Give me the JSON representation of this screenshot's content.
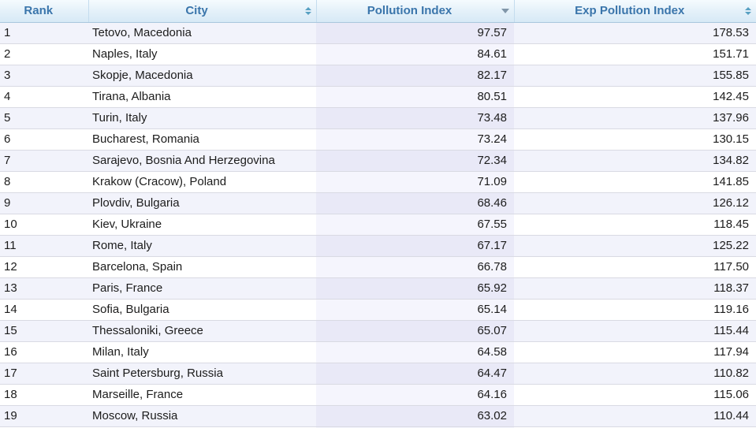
{
  "table": {
    "columns": [
      {
        "label": "Rank",
        "sort": "none"
      },
      {
        "label": "City",
        "sort": "both"
      },
      {
        "label": "Pollution Index",
        "sort": "desc"
      },
      {
        "label": "Exp Pollution Index",
        "sort": "both"
      }
    ],
    "sorted_column": "Pollution Index",
    "sort_direction": "descending",
    "colors": {
      "header_text": "#3a75ab",
      "header_bg_top": "#f5fbfe",
      "header_bg_bottom": "#d7e9f6",
      "odd_row_bg": "#f2f3fb",
      "even_row_bg": "#ffffff",
      "sorted_col_odd_bg": "#e9e9f7",
      "sorted_col_even_bg": "#f5f5fd",
      "sort_arrows": "#57a0c2",
      "sort_desc_arrow": "#8096a9"
    },
    "icons": {
      "sortable": "sort-up-down-icon",
      "sorted_desc": "sort-descending-icon"
    },
    "rows": [
      {
        "rank": "1",
        "city": "Tetovo, Macedonia",
        "pollution_index": "97.57",
        "exp_pollution_index": "178.53"
      },
      {
        "rank": "2",
        "city": "Naples, Italy",
        "pollution_index": "84.61",
        "exp_pollution_index": "151.71"
      },
      {
        "rank": "3",
        "city": "Skopje, Macedonia",
        "pollution_index": "82.17",
        "exp_pollution_index": "155.85"
      },
      {
        "rank": "4",
        "city": "Tirana, Albania",
        "pollution_index": "80.51",
        "exp_pollution_index": "142.45"
      },
      {
        "rank": "5",
        "city": "Turin, Italy",
        "pollution_index": "73.48",
        "exp_pollution_index": "137.96"
      },
      {
        "rank": "6",
        "city": "Bucharest, Romania",
        "pollution_index": "73.24",
        "exp_pollution_index": "130.15"
      },
      {
        "rank": "7",
        "city": "Sarajevo, Bosnia And Herzegovina",
        "pollution_index": "72.34",
        "exp_pollution_index": "134.82"
      },
      {
        "rank": "8",
        "city": "Krakow (Cracow), Poland",
        "pollution_index": "71.09",
        "exp_pollution_index": "141.85"
      },
      {
        "rank": "9",
        "city": "Plovdiv, Bulgaria",
        "pollution_index": "68.46",
        "exp_pollution_index": "126.12"
      },
      {
        "rank": "10",
        "city": "Kiev, Ukraine",
        "pollution_index": "67.55",
        "exp_pollution_index": "118.45"
      },
      {
        "rank": "11",
        "city": "Rome, Italy",
        "pollution_index": "67.17",
        "exp_pollution_index": "125.22"
      },
      {
        "rank": "12",
        "city": "Barcelona, Spain",
        "pollution_index": "66.78",
        "exp_pollution_index": "117.50"
      },
      {
        "rank": "13",
        "city": "Paris, France",
        "pollution_index": "65.92",
        "exp_pollution_index": "118.37"
      },
      {
        "rank": "14",
        "city": "Sofia, Bulgaria",
        "pollution_index": "65.14",
        "exp_pollution_index": "119.16"
      },
      {
        "rank": "15",
        "city": "Thessaloniki, Greece",
        "pollution_index": "65.07",
        "exp_pollution_index": "115.44"
      },
      {
        "rank": "16",
        "city": "Milan, Italy",
        "pollution_index": "64.58",
        "exp_pollution_index": "117.94"
      },
      {
        "rank": "17",
        "city": "Saint Petersburg, Russia",
        "pollution_index": "64.47",
        "exp_pollution_index": "110.82"
      },
      {
        "rank": "18",
        "city": "Marseille, France",
        "pollution_index": "64.16",
        "exp_pollution_index": "115.06"
      },
      {
        "rank": "19",
        "city": "Moscow, Russia",
        "pollution_index": "63.02",
        "exp_pollution_index": "110.44"
      }
    ]
  }
}
